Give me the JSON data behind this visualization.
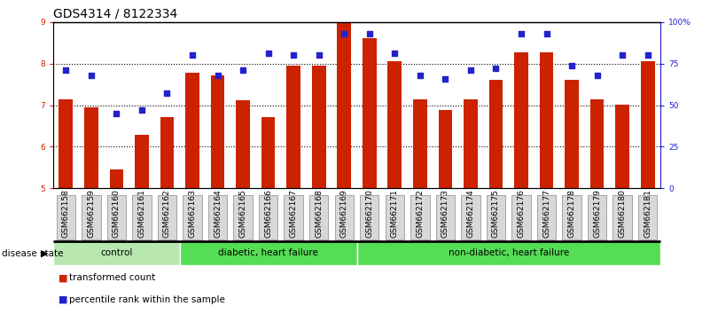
{
  "title": "GDS4314 / 8122334",
  "samples": [
    "GSM662158",
    "GSM662159",
    "GSM662160",
    "GSM662161",
    "GSM662162",
    "GSM662163",
    "GSM662164",
    "GSM662165",
    "GSM662166",
    "GSM662167",
    "GSM662168",
    "GSM662169",
    "GSM662170",
    "GSM662171",
    "GSM662172",
    "GSM662173",
    "GSM662174",
    "GSM662175",
    "GSM662176",
    "GSM662177",
    "GSM662178",
    "GSM662179",
    "GSM662180",
    "GSM662181"
  ],
  "bar_values": [
    7.15,
    6.95,
    5.45,
    6.28,
    6.72,
    7.78,
    7.72,
    7.12,
    6.72,
    7.95,
    7.95,
    8.98,
    8.62,
    8.05,
    7.15,
    6.88,
    7.15,
    7.62,
    8.28,
    8.28,
    7.62,
    7.15,
    7.02,
    8.05
  ],
  "dot_values_pct": [
    71,
    68,
    45,
    47,
    57,
    80,
    68,
    71,
    81,
    80,
    80,
    93,
    93,
    81,
    68,
    66,
    71,
    72,
    93,
    93,
    74,
    68,
    80,
    80
  ],
  "bar_color": "#cc2200",
  "dot_color": "#2222cc",
  "ylim_left": [
    5,
    9
  ],
  "ylim_right": [
    0,
    100
  ],
  "yticks_left": [
    5,
    6,
    7,
    8,
    9
  ],
  "yticks_right": [
    0,
    25,
    50,
    75,
    100
  ],
  "ytick_labels_right": [
    "0",
    "25",
    "50",
    "75",
    "100%"
  ],
  "grid_yticks": [
    6,
    7,
    8
  ],
  "groups": [
    {
      "label": "control",
      "start": 0,
      "end": 5,
      "color": "#b8e8b0"
    },
    {
      "label": "diabetic, heart failure",
      "start": 5,
      "end": 12,
      "color": "#55dd55"
    },
    {
      "label": "non-diabetic, heart failure",
      "start": 12,
      "end": 24,
      "color": "#55dd55"
    }
  ],
  "disease_state_label": "disease state",
  "legend_bar": "transformed count",
  "legend_dot": "percentile rank within the sample",
  "bar_width": 0.55,
  "title_fontsize": 10,
  "tick_fontsize": 6.5,
  "label_fontsize": 7.5
}
